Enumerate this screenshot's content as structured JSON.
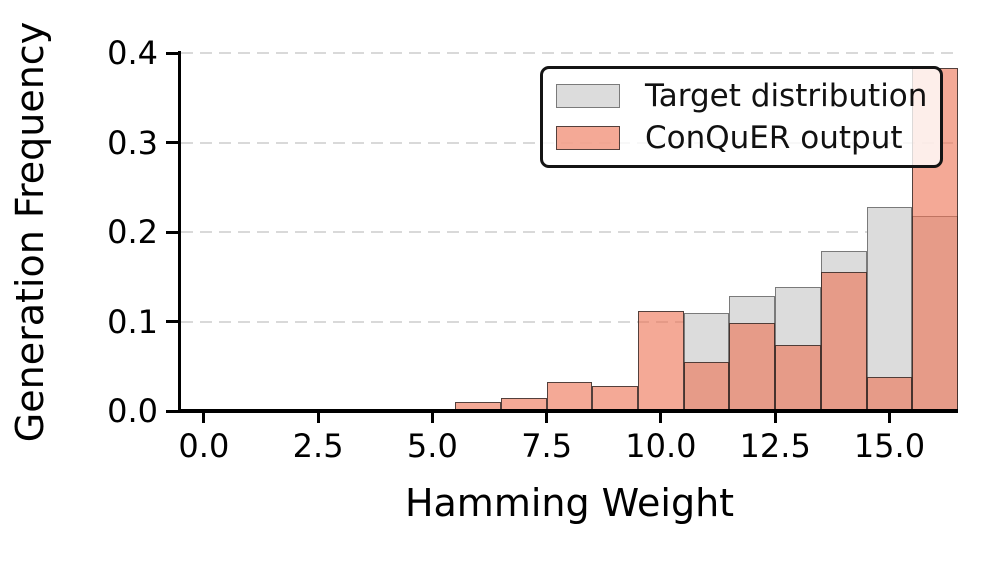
{
  "figure": {
    "xlabel": "Hamming Weight",
    "ylabel": "Generation Frequency"
  },
  "chart_data": {
    "type": "bar",
    "subtype": "overlaid-histogram",
    "title": "",
    "xlabel": "Hamming Weight",
    "ylabel": "Generation Frequency",
    "bin_width": 1,
    "x": [
      0,
      1,
      2,
      3,
      4,
      5,
      6,
      7,
      8,
      9,
      10,
      11,
      12,
      13,
      14,
      15,
      16
    ],
    "series": [
      {
        "name": "Target distribution",
        "key": "target",
        "fill": "#dcdcdc",
        "edge": "#7a7a7a",
        "values": [
          0,
          0,
          0,
          0,
          0,
          0,
          0,
          0,
          0,
          0,
          0,
          0.11,
          0.128,
          0.138,
          0.179,
          0.228,
          0.218
        ]
      },
      {
        "name": "ConQuER output",
        "key": "conquer",
        "fill": "rgba(236,112,80,0.6)",
        "edge": "rgba(30,30,30,0.75)",
        "values": [
          0,
          0,
          0,
          0,
          0,
          0,
          0.01,
          0.014,
          0.032,
          0.028,
          0.112,
          0.055,
          0.098,
          0.074,
          0.155,
          0.038,
          0.383
        ]
      }
    ],
    "xlim": [
      -0.5,
      16.5
    ],
    "ylim": [
      0,
      0.4
    ],
    "xticks": [
      0,
      2.5,
      5,
      7.5,
      10,
      12.5,
      15
    ],
    "xtick_labels": [
      "0.0",
      "2.5",
      "5.0",
      "7.5",
      "10.0",
      "12.5",
      "15.0"
    ],
    "yticks": [
      0,
      0.1,
      0.2,
      0.3,
      0.4
    ],
    "ytick_labels": [
      "0.0",
      "0.1",
      "0.2",
      "0.3",
      "0.4"
    ],
    "grid": "y-dashed",
    "gridline_color": "#d9d9d9",
    "legend_position": "upper right"
  }
}
